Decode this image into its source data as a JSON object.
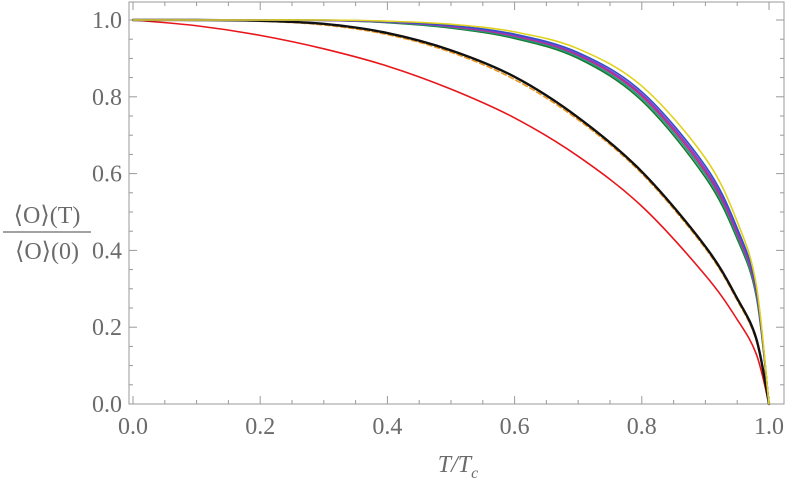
{
  "chart_data": {
    "type": "line",
    "title": "",
    "xlabel": "T/T",
    "xlabel_sub": "c",
    "ylabel": {
      "numerator": "⟨O⟩(T)",
      "denominator": "⟨O⟩(0)"
    },
    "xlim": [
      0,
      1
    ],
    "ylim": [
      0,
      1.05
    ],
    "x_ticks": [
      0.0,
      0.2,
      0.4,
      0.6,
      0.8,
      1.0
    ],
    "y_ticks": [
      0.0,
      0.2,
      0.4,
      0.6,
      0.8,
      1.0
    ],
    "x_tick_labels": [
      "0.0",
      "0.2",
      "0.4",
      "0.6",
      "0.8",
      "1.0"
    ],
    "y_tick_labels": [
      "0.0",
      "0.2",
      "0.4",
      "0.6",
      "0.8",
      "1.0"
    ],
    "grid": false,
    "series": [
      {
        "name": "red",
        "color": "#e8161b",
        "dash": "solid",
        "x": [
          0,
          0.1,
          0.2,
          0.3,
          0.4,
          0.5,
          0.6,
          0.7,
          0.8,
          0.9,
          0.95,
          0.98,
          1.0
        ],
        "y": [
          1.0,
          0.985,
          0.96,
          0.925,
          0.88,
          0.82,
          0.745,
          0.645,
          0.515,
          0.335,
          0.22,
          0.13,
          0.0
        ]
      },
      {
        "name": "orange-dashed",
        "color": "#f0961e",
        "dash": "dashed",
        "x": [
          0,
          0.1,
          0.2,
          0.3,
          0.4,
          0.5,
          0.6,
          0.7,
          0.8,
          0.9,
          0.95,
          0.98,
          1.0
        ],
        "y": [
          1.0,
          1.0,
          0.997,
          0.987,
          0.962,
          0.916,
          0.845,
          0.74,
          0.6,
          0.405,
          0.27,
          0.165,
          0.0
        ]
      },
      {
        "name": "black",
        "color": "#111111",
        "dash": "solid",
        "x": [
          0,
          0.1,
          0.2,
          0.3,
          0.4,
          0.5,
          0.6,
          0.7,
          0.8,
          0.9,
          0.95,
          0.98,
          1.0
        ],
        "y": [
          1.0,
          1.0,
          0.998,
          0.99,
          0.966,
          0.921,
          0.852,
          0.746,
          0.605,
          0.41,
          0.275,
          0.17,
          0.0
        ]
      },
      {
        "name": "green",
        "color": "#1a7a2a",
        "dash": "solid",
        "x": [
          0,
          0.1,
          0.2,
          0.3,
          0.4,
          0.5,
          0.6,
          0.7,
          0.8,
          0.9,
          0.95,
          0.98,
          1.0
        ],
        "y": [
          1.0,
          1.0,
          1.0,
          0.999,
          0.993,
          0.979,
          0.952,
          0.9,
          0.79,
          0.59,
          0.43,
          0.28,
          0.0
        ]
      },
      {
        "name": "teal",
        "color": "#1f9a8a",
        "dash": "solid",
        "x": [
          0,
          0.1,
          0.2,
          0.3,
          0.4,
          0.5,
          0.6,
          0.7,
          0.8,
          0.9,
          0.95,
          0.98,
          1.0
        ],
        "y": [
          1.0,
          1.0,
          1.0,
          0.999,
          0.994,
          0.981,
          0.955,
          0.904,
          0.796,
          0.598,
          0.437,
          0.285,
          0.0
        ]
      },
      {
        "name": "magenta",
        "color": "#c8287a",
        "dash": "solid",
        "x": [
          0,
          0.1,
          0.2,
          0.3,
          0.4,
          0.5,
          0.6,
          0.7,
          0.8,
          0.9,
          0.95,
          0.98,
          1.0
        ],
        "y": [
          1.0,
          1.0,
          1.0,
          0.999,
          0.995,
          0.983,
          0.958,
          0.908,
          0.802,
          0.605,
          0.444,
          0.29,
          0.0
        ]
      },
      {
        "name": "purple",
        "color": "#8a3cc8",
        "dash": "solid",
        "x": [
          0,
          0.1,
          0.2,
          0.3,
          0.4,
          0.5,
          0.6,
          0.7,
          0.8,
          0.9,
          0.95,
          0.98,
          1.0
        ],
        "y": [
          1.0,
          1.0,
          1.0,
          0.999,
          0.995,
          0.984,
          0.96,
          0.911,
          0.807,
          0.612,
          0.45,
          0.295,
          0.0
        ]
      },
      {
        "name": "blue",
        "color": "#3050c8",
        "dash": "solid",
        "x": [
          0,
          0.1,
          0.2,
          0.3,
          0.4,
          0.5,
          0.6,
          0.7,
          0.8,
          0.9,
          0.95,
          0.98,
          1.0
        ],
        "y": [
          1.0,
          1.0,
          1.0,
          1.0,
          0.996,
          0.986,
          0.963,
          0.915,
          0.813,
          0.62,
          0.458,
          0.3,
          0.0
        ]
      },
      {
        "name": "yellow",
        "color": "#e0d21c",
        "dash": "solid",
        "x": [
          0,
          0.1,
          0.2,
          0.3,
          0.4,
          0.5,
          0.6,
          0.7,
          0.8,
          0.9,
          0.95,
          0.98,
          1.0
        ],
        "y": [
          1.0,
          1.0,
          1.0,
          1.0,
          0.997,
          0.989,
          0.969,
          0.925,
          0.828,
          0.64,
          0.475,
          0.31,
          0.0
        ]
      }
    ]
  }
}
